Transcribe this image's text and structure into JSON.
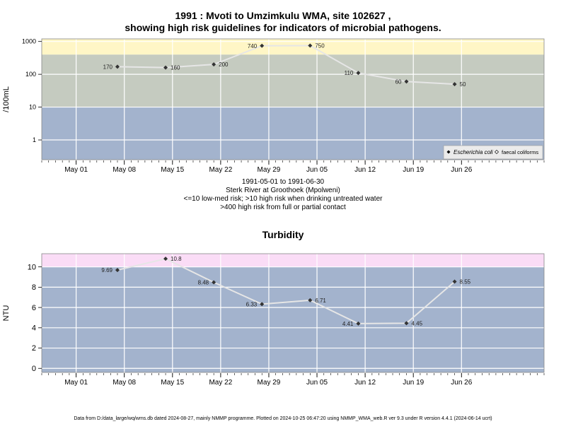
{
  "page": {
    "footer": "Data from D:/data_large/wq/wms.db dated 2024-08-27, mainly NMMP programme. Plotted on 2024-10-25 06:47:20 using NMMP_WMA_web.R ver 9.3 under R version 4.4.1 (2024-06-14 ucrt)"
  },
  "chart1": {
    "title_line1": "1991 : Mvoti to Umzimkulu WMA, site 102627 ,",
    "title_line2": "showing high risk guidelines for indicators of microbial pathogens.",
    "caption": [
      "1991-05-01 to 1991-06-30",
      "Sterk River at Groothoek (Mpolweni)",
      "<=10 low-med risk; >10 high risk when drinking untreated water",
      ">400 high risk from full or partial contact"
    ],
    "legend": {
      "ecoli": "Escherichia coli",
      "fc": "faecal coliforms"
    }
  },
  "chart2": {
    "title": "Turbidity"
  },
  "chart_data": [
    {
      "type": "line",
      "title": "1991 : Mvoti to Umzimkulu WMA, site 102627 , showing high risk guidelines for indicators of microbial pathogens.",
      "ylabel": "/100mL",
      "yscale": "log",
      "ylim": [
        0.25,
        1200
      ],
      "yticks": [
        1,
        10,
        100,
        1000
      ],
      "ytick_labels": [
        "1",
        "10",
        "100",
        "1000"
      ],
      "xlim": [
        "1991-04-26",
        "1991-07-08"
      ],
      "xticks": [
        "1991-05-01",
        "1991-05-08",
        "1991-05-15",
        "1991-05-22",
        "1991-05-29",
        "1991-06-05",
        "1991-06-12",
        "1991-06-19",
        "1991-06-26"
      ],
      "xtick_labels": [
        "May 01",
        "May 08",
        "May 15",
        "May 22",
        "May 29",
        "Jun 05",
        "Jun 12",
        "Jun 19",
        "Jun 26"
      ],
      "bands": [
        {
          "from": 0.25,
          "to": 10,
          "color": "#a3b3cd"
        },
        {
          "from": 10,
          "to": 400,
          "color": "#c5cbc0"
        },
        {
          "from": 400,
          "to": 1200,
          "color": "#fff6c6"
        }
      ],
      "series": [
        {
          "name": "Escherichia coli",
          "x": [
            "1991-05-07",
            "1991-05-14",
            "1991-05-21",
            "1991-05-28",
            "1991-06-04",
            "1991-06-11",
            "1991-06-18",
            "1991-06-25"
          ],
          "y": [
            170,
            160,
            200,
            740,
            750,
            110,
            60,
            50
          ],
          "labels": [
            "170",
            "160",
            "200",
            "740",
            "750",
            "110",
            "60",
            "50"
          ],
          "label_side": [
            "left",
            "right",
            "right",
            "left",
            "right",
            "left",
            "left",
            "right"
          ]
        }
      ],
      "legend_position": "bottom-right",
      "grid": true
    },
    {
      "type": "line",
      "title": "Turbidity",
      "ylabel": "NTU",
      "ylim": [
        -0.4,
        11.3
      ],
      "yticks": [
        0,
        2,
        4,
        6,
        8,
        10
      ],
      "ytick_labels": [
        "0",
        "2",
        "4",
        "6",
        "8",
        "10"
      ],
      "xlim": [
        "1991-04-26",
        "1991-07-08"
      ],
      "xticks": [
        "1991-05-01",
        "1991-05-08",
        "1991-05-15",
        "1991-05-22",
        "1991-05-29",
        "1991-06-05",
        "1991-06-12",
        "1991-06-19",
        "1991-06-26"
      ],
      "xtick_labels": [
        "May 01",
        "May 08",
        "May 15",
        "May 22",
        "May 29",
        "Jun 05",
        "Jun 12",
        "Jun 19",
        "Jun 26"
      ],
      "bands": [
        {
          "from": -0.4,
          "to": 10,
          "color": "#a3b3cd"
        },
        {
          "from": 10,
          "to": 11.3,
          "color": "#fadcf6"
        }
      ],
      "series": [
        {
          "x": [
            "1991-05-07",
            "1991-05-14",
            "1991-05-21",
            "1991-05-28",
            "1991-06-04",
            "1991-06-11",
            "1991-06-18",
            "1991-06-25"
          ],
          "y": [
            9.69,
            10.8,
            8.48,
            6.33,
            6.71,
            4.41,
            4.45,
            8.55
          ],
          "labels": [
            "9.69",
            "10.8",
            "8.48",
            "6.33",
            "6.71",
            "4.41",
            "4.45",
            "8.55"
          ],
          "label_side": [
            "left",
            "right",
            "left",
            "left",
            "right",
            "left",
            "right",
            "right"
          ]
        }
      ],
      "grid": true
    }
  ]
}
